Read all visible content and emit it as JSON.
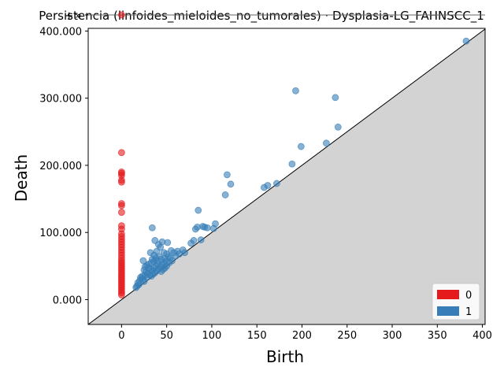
{
  "chart_data": {
    "type": "scatter",
    "title": "Persistencia (linfoides_mieloides_no_tumorales) · Dysplasia-LG_FAHNSCC_1",
    "xlabel": "Birth",
    "ylabel": "Death",
    "xlim": [
      -37,
      403
    ],
    "ylim": [
      -37000,
      404000
    ],
    "x_ticks": [
      0,
      50,
      100,
      150,
      200,
      250,
      300,
      350,
      400
    ],
    "y_ticks": [
      0,
      100000,
      200000,
      300000,
      400000
    ],
    "y_tick_labels": [
      "0.000",
      "100.000",
      "200.000",
      "300.000",
      "400.000"
    ],
    "infinity_label": "+∞",
    "infinity_value": 424000,
    "diagonal": true,
    "legend_placement": "bottom-right",
    "series": [
      {
        "name": "0",
        "color": "#e41a1c",
        "points": [
          [
            0,
            424000
          ],
          [
            0,
            219000
          ],
          [
            0,
            190000
          ],
          [
            0,
            188000
          ],
          [
            0,
            185000
          ],
          [
            0,
            178000
          ],
          [
            0,
            175000
          ],
          [
            0,
            143000
          ],
          [
            0,
            140000
          ],
          [
            0,
            130000
          ],
          [
            0,
            110000
          ],
          [
            0,
            105000
          ],
          [
            0,
            98000
          ],
          [
            0,
            94000
          ],
          [
            0,
            90000
          ],
          [
            0,
            86000
          ],
          [
            0,
            82000
          ],
          [
            0,
            78000
          ],
          [
            0,
            74000
          ],
          [
            0,
            70000
          ],
          [
            0,
            66000
          ],
          [
            0,
            62000
          ],
          [
            0,
            58000
          ],
          [
            0,
            55000
          ],
          [
            0,
            52000
          ],
          [
            0,
            49000
          ],
          [
            0,
            46000
          ],
          [
            0,
            43000
          ],
          [
            0,
            40000
          ],
          [
            0,
            37000
          ],
          [
            0,
            34000
          ],
          [
            0,
            31000
          ],
          [
            0,
            28000
          ],
          [
            0,
            25000
          ],
          [
            0,
            22000
          ],
          [
            0,
            19000
          ],
          [
            0,
            16000
          ],
          [
            0,
            13000
          ],
          [
            0,
            10000
          ],
          [
            0,
            7000
          ]
        ]
      },
      {
        "name": "1",
        "color": "#377eb8",
        "points": [
          [
            382,
            385000
          ],
          [
            193,
            311000
          ],
          [
            237,
            301000
          ],
          [
            240,
            257000
          ],
          [
            199,
            228000
          ],
          [
            227,
            233000
          ],
          [
            189,
            202000
          ],
          [
            117,
            186000
          ],
          [
            121,
            172000
          ],
          [
            172,
            173000
          ],
          [
            162,
            170000
          ],
          [
            158,
            167000
          ],
          [
            115,
            156000
          ],
          [
            85,
            133000
          ],
          [
            104,
            113000
          ],
          [
            90,
            109000
          ],
          [
            92,
            108000
          ],
          [
            95,
            107000
          ],
          [
            102,
            106000
          ],
          [
            84,
            108000
          ],
          [
            82,
            105000
          ],
          [
            34,
            107000
          ],
          [
            88,
            89000
          ],
          [
            80,
            88000
          ],
          [
            77,
            84000
          ],
          [
            37,
            88000
          ],
          [
            45,
            86000
          ],
          [
            51,
            85000
          ],
          [
            41,
            82000
          ],
          [
            43,
            78000
          ],
          [
            62,
            72000
          ],
          [
            68,
            74000
          ],
          [
            70,
            70000
          ],
          [
            55,
            73000
          ],
          [
            58,
            70000
          ],
          [
            64,
            68000
          ],
          [
            60,
            65000
          ],
          [
            32,
            70000
          ],
          [
            36,
            66000
          ],
          [
            39,
            72000
          ],
          [
            47,
            70000
          ],
          [
            50,
            68000
          ],
          [
            52,
            64000
          ],
          [
            54,
            62000
          ],
          [
            48,
            61000
          ],
          [
            44,
            60000
          ],
          [
            40,
            58000
          ],
          [
            36,
            57000
          ],
          [
            33,
            55000
          ],
          [
            30,
            53000
          ],
          [
            28,
            51000
          ],
          [
            26,
            49000
          ],
          [
            24,
            58000
          ],
          [
            25,
            44000
          ],
          [
            27,
            41000
          ],
          [
            29,
            39000
          ],
          [
            31,
            37000
          ],
          [
            33,
            35000
          ],
          [
            35,
            38000
          ],
          [
            37,
            40000
          ],
          [
            39,
            43000
          ],
          [
            41,
            46000
          ],
          [
            43,
            49000
          ],
          [
            45,
            52000
          ],
          [
            47,
            55000
          ],
          [
            49,
            57000
          ],
          [
            42,
            64000
          ],
          [
            38,
            62000
          ],
          [
            34,
            60000
          ],
          [
            30,
            47000
          ],
          [
            32,
            45000
          ],
          [
            34,
            43000
          ],
          [
            36,
            47000
          ],
          [
            38,
            50000
          ],
          [
            40,
            53000
          ],
          [
            46,
            45000
          ],
          [
            50,
            50000
          ],
          [
            53,
            55000
          ],
          [
            56,
            58000
          ],
          [
            44,
            42000
          ],
          [
            48,
            47000
          ],
          [
            22,
            31000
          ],
          [
            20,
            28000
          ],
          [
            18,
            25000
          ],
          [
            19,
            22000
          ],
          [
            17,
            20000
          ],
          [
            16,
            18000
          ],
          [
            23,
            35000
          ],
          [
            21,
            33000
          ],
          [
            26,
            36000
          ],
          [
            24,
            30000
          ],
          [
            28,
            33000
          ],
          [
            25,
            27000
          ]
        ]
      }
    ]
  }
}
